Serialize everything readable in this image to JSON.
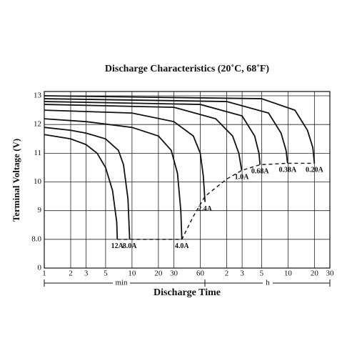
{
  "chart_data": {
    "type": "line",
    "title": "Discharge Characteristics (20˚C, 68˚F)",
    "y_label": "Terminal Voltage (V)",
    "x_label": "Discharge Time",
    "x_units": [
      "min",
      "h"
    ],
    "xscale": "log",
    "xlim": [
      1,
      1800
    ],
    "xticks": [
      1,
      2,
      3,
      5,
      10,
      20,
      30,
      60,
      {
        "value": 120,
        "label": "2"
      },
      {
        "value": 180,
        "label": "3"
      },
      {
        "value": 300,
        "label": "5"
      },
      {
        "value": 600,
        "label": "10"
      },
      {
        "value": 1200,
        "label": "20"
      },
      {
        "value": 1800,
        "label": "30"
      }
    ],
    "ylim": [
      0,
      13.15
    ],
    "yticks": [
      0,
      {
        "value": 8,
        "label": "8.0"
      },
      9,
      10,
      11,
      12,
      13
    ],
    "grid": true,
    "color": "#111111",
    "series": [
      {
        "name": "12A",
        "x": [
          1,
          2,
          3,
          4,
          5,
          6,
          6.7,
          6.8
        ],
        "values": [
          11.65,
          11.5,
          11.3,
          11.0,
          10.5,
          9.7,
          8.6,
          8.0
        ]
      },
      {
        "name": "8.0A",
        "x": [
          1,
          2,
          3,
          5,
          7,
          8,
          9,
          9.4
        ],
        "values": [
          11.9,
          11.8,
          11.7,
          11.5,
          11.1,
          10.6,
          9.4,
          8.0
        ]
      },
      {
        "name": "4.0A",
        "x": [
          1,
          3,
          10,
          20,
          28,
          33,
          36,
          37
        ],
        "values": [
          12.2,
          12.1,
          11.9,
          11.6,
          11.1,
          10.3,
          9.0,
          8.0
        ]
      },
      {
        "name": "2.4A",
        "x": [
          1,
          10,
          30,
          50,
          60,
          65,
          68
        ],
        "values": [
          12.5,
          12.4,
          12.1,
          11.6,
          11.0,
          10.2,
          9.3
        ]
      },
      {
        "name": "1.0A",
        "x": [
          1,
          30,
          90,
          140,
          165,
          178
        ],
        "values": [
          12.7,
          12.6,
          12.2,
          11.6,
          11.0,
          10.4
        ]
      },
      {
        "name": "0.68A",
        "x": [
          1,
          60,
          180,
          250,
          280,
          288
        ],
        "values": [
          12.8,
          12.7,
          12.3,
          11.6,
          11.0,
          10.6
        ]
      },
      {
        "name": "0.38A",
        "x": [
          1,
          120,
          360,
          500,
          570,
          594
        ],
        "values": [
          12.9,
          12.8,
          12.4,
          11.7,
          11.1,
          10.65
        ]
      },
      {
        "name": "0.20A",
        "x": [
          1,
          300,
          720,
          1000,
          1150,
          1200
        ],
        "values": [
          13.0,
          12.9,
          12.5,
          11.8,
          11.2,
          10.65
        ]
      }
    ],
    "end_voltage_line": {
      "style": "dashed",
      "x": [
        6.8,
        37,
        50,
        68,
        120,
        178,
        288,
        594,
        1200
      ],
      "values": [
        8.0,
        8.0,
        8.8,
        9.5,
        10.1,
        10.4,
        10.6,
        10.65,
        10.65
      ]
    }
  }
}
